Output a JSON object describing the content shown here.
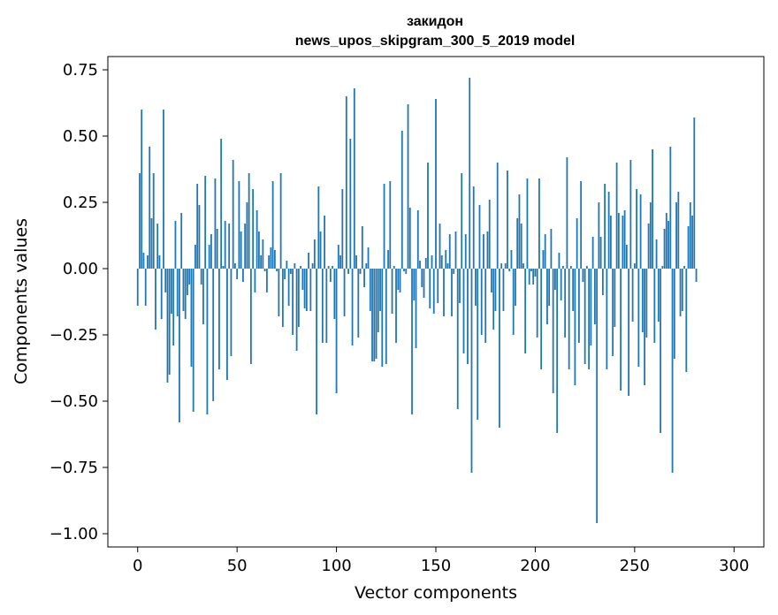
{
  "chart_data": {
    "type": "bar",
    "title_line1": "закидон",
    "title_line2": "news_upos_skipgram_300_5_2019 model",
    "xlabel": "Vector components",
    "ylabel": "Components values",
    "xlim": [
      -15,
      315
    ],
    "ylim": [
      -1.05,
      0.8
    ],
    "xticks": [
      0,
      50,
      100,
      150,
      200,
      250,
      300
    ],
    "xtick_labels": [
      "0",
      "50",
      "100",
      "150",
      "200",
      "250",
      "300"
    ],
    "yticks": [
      0.75,
      0.5,
      0.25,
      0.0,
      -0.25,
      -0.5,
      -0.75,
      -1.0
    ],
    "ytick_labels": [
      "0.75",
      "0.50",
      "0.25",
      "0.00",
      "−0.25",
      "−0.50",
      "−0.75",
      "−1.00"
    ],
    "bar_color": "#1f77b4",
    "values": [
      -0.14,
      0.36,
      0.6,
      0.06,
      -0.14,
      0.05,
      0.46,
      0.19,
      0.36,
      -0.23,
      0.17,
      0.05,
      -0.19,
      0.6,
      -0.09,
      -0.43,
      -0.4,
      -0.17,
      -0.29,
      0.18,
      -0.18,
      -0.58,
      0.21,
      -0.16,
      -0.19,
      -0.1,
      -0.06,
      -0.37,
      -0.54,
      0.09,
      0.32,
      0.24,
      -0.06,
      -0.21,
      0.35,
      -0.55,
      0.09,
      0.13,
      -0.5,
      0.34,
      0.15,
      -0.38,
      0.49,
      0.01,
      0.18,
      -0.42,
      0.17,
      -0.33,
      0.41,
      0.02,
      -0.04,
      0.33,
      0.14,
      -0.05,
      0.17,
      0.25,
      0.36,
      -0.36,
      0.3,
      -0.09,
      0.22,
      0.14,
      0.05,
      0.11,
      -0.01,
      -0.09,
      0.05,
      0.08,
      0.33,
      0.07,
      -0.01,
      -0.18,
      0.36,
      -0.22,
      -0.04,
      0.03,
      -0.14,
      -0.02,
      -0.25,
      0.02,
      -0.31,
      -0.22,
      0.01,
      -0.08,
      -0.15,
      -0.16,
      0.06,
      -0.16,
      0.02,
      0.11,
      -0.55,
      0.31,
      0.14,
      -0.28,
      0.2,
      -0.28,
      0.01,
      -0.05,
      0.01,
      -0.19,
      -0.47,
      0.09,
      0.05,
      0.3,
      -0.18,
      0.65,
      -0.02,
      0.49,
      -0.29,
      0.68,
      0.05,
      -0.26,
      -0.02,
      0.16,
      -0.07,
      0.02,
      0.08,
      -0.16,
      -0.35,
      -0.35,
      -0.34,
      -0.24,
      -0.16,
      -0.37,
      0.32,
      -0.36,
      0.07,
      0.33,
      -0.17,
      0.01,
      -0.28,
      -0.08,
      -0.09,
      0.52,
      -0.01,
      -0.02,
      0.62,
      0.23,
      -0.55,
      -0.12,
      -0.3,
      0.22,
      0.03,
      -0.07,
      -0.11,
      0.04,
      0.4,
      -0.15,
      0.05,
      -0.17,
      0.64,
      -0.13,
      0.17,
      0.05,
      -0.18,
      0.07,
      0.02,
      0.13,
      -0.18,
      -0.02,
      0.14,
      -0.53,
      -0.13,
      0.36,
      -0.32,
      0.13,
      -0.36,
      0.72,
      -0.77,
      0.31,
      -0.14,
      -0.57,
      0.24,
      -0.25,
      0.13,
      -0.28,
      0.14,
      0.26,
      -0.09,
      -0.23,
      -0.16,
      0.4,
      -0.6,
      0.02,
      -0.16,
      0.02,
      0.37,
      -0.01,
      0.07,
      -0.25,
      -0.14,
      0.19,
      0.28,
      0.17,
      0.02,
      -0.32,
      0.34,
      -0.06,
      -0.01,
      -0.06,
      -0.03,
      -0.26,
      0.34,
      -0.38,
      0.07,
      0.13,
      -0.21,
      -0.14,
      0.15,
      -0.47,
      -0.08,
      -0.62,
      0.06,
      -0.12,
      0.01,
      -0.26,
      0.42,
      -0.38,
      0.01,
      -0.16,
      -0.44,
      0.19,
      -0.28,
      0.33,
      -0.05,
      -0.36,
      0.01,
      -0.38,
      -0.29,
      0.12,
      -0.21,
      -0.96,
      0.25,
      0.12,
      -0.1,
      0.32,
      -0.38,
      0.29,
      0.2,
      -0.33,
      -0.22,
      0.4,
      0.21,
      -0.46,
      0.2,
      0.22,
      0.09,
      -0.48,
      0.41,
      -0.2,
      0.02,
      0.3,
      -0.37,
      0.28,
      -0.24,
      -0.44,
      -0.26,
      0.17,
      0.25,
      0.45,
      -0.28,
      0.11,
      -0.2,
      -0.62,
      0.01,
      0.15,
      0.21,
      0.18,
      0.46,
      -0.77,
      -0.34,
      0.25,
      0.29,
      -0.18,
      -0.16,
      0.01,
      -0.39,
      0.16,
      0.25,
      0.2,
      0.57,
      -0.05
    ]
  }
}
